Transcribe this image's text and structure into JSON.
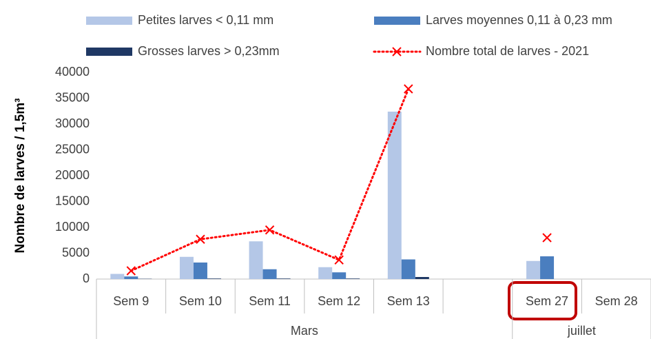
{
  "chart_data": {
    "type": "bar",
    "y_label": "Nombre de larves / 1,5m³",
    "categories": [
      "Sem 9",
      "Sem 10",
      "Sem 11",
      "Sem 12",
      "Sem 13",
      null,
      "Sem 27",
      "Sem 28"
    ],
    "groups": [
      {
        "name": "Mars",
        "count": 6
      },
      {
        "name": "juillet",
        "count": 2
      }
    ],
    "series": [
      {
        "name": "Petites larves < 0,11 mm",
        "type": "bar",
        "color": "#b4c7e7",
        "values": [
          1000,
          4300,
          7300,
          2300,
          32400,
          null,
          3500,
          null
        ]
      },
      {
        "name": "Larves moyennes 0,11 à 0,23 mm",
        "type": "bar",
        "color": "#4a7ebf",
        "values": [
          500,
          3200,
          1900,
          1300,
          3800,
          null,
          4400,
          null
        ]
      },
      {
        "name": "Grosses larves > 0,23mm",
        "type": "bar",
        "color": "#1f3864",
        "values": [
          50,
          100,
          100,
          100,
          400,
          null,
          null,
          null
        ]
      },
      {
        "name": "Nombre total de larves - 2021",
        "type": "line",
        "color": "#ff0000",
        "values": [
          1600,
          7700,
          9500,
          3700,
          36800,
          null,
          8000,
          null
        ]
      }
    ],
    "ylim": [
      0,
      40000
    ],
    "yticks": [
      0,
      5000,
      10000,
      15000,
      20000,
      25000,
      30000,
      35000,
      40000
    ],
    "grid": false,
    "legend": "top"
  }
}
